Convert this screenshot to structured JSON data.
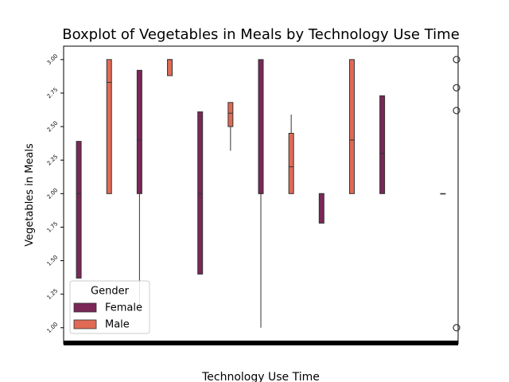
{
  "chart_data": {
    "type": "boxplot",
    "title": "Boxplot of Vegetables in Meals by Technology Use Time",
    "x_label": "Technology Use Time",
    "y_label": "Vegetables in Meals",
    "categories": [
      null,
      null,
      null,
      null,
      null,
      null,
      null,
      null,
      null,
      null,
      null,
      null,
      null
    ],
    "ylim": [
      0.88,
      3.1
    ],
    "yticks": [
      {
        "value": 1,
        "label": "1.00"
      },
      {
        "value": 1.25,
        "label": "1.25"
      },
      {
        "value": 1.5,
        "label": "1.50"
      },
      {
        "value": 1.75,
        "label": "1.75"
      },
      {
        "value": 2,
        "label": "2.00"
      },
      {
        "value": 2.25,
        "label": "2.25"
      },
      {
        "value": 2.5,
        "label": "2.50"
      },
      {
        "value": 2.75,
        "label": "2.75"
      },
      {
        "value": 3,
        "label": "3.00"
      }
    ],
    "legend_title": "Gender",
    "legend_position": "lower left",
    "series": [
      {
        "name": "Female",
        "color": "#7a2757",
        "boxes": [
          {
            "low": 1.37,
            "q1": 1.37,
            "median": 2.0,
            "q3": 2.39,
            "high": 2.39
          },
          null,
          {
            "low": 1.12,
            "q1": 2.0,
            "median": 2.4,
            "q3": 2.92,
            "high": 2.92
          },
          null,
          {
            "low": 1.4,
            "q1": 1.4,
            "median": 2.0,
            "q3": 2.61,
            "high": 2.61
          },
          null,
          {
            "low": 1.0,
            "q1": 2.0,
            "median": 2.0,
            "q3": 3.0,
            "high": 3.0
          },
          null,
          {
            "low": 1.78,
            "q1": 1.78,
            "median": 2.0,
            "q3": 2.0,
            "high": 2.0
          },
          null,
          {
            "low": 2.0,
            "q1": 2.0,
            "median": 2.3,
            "q3": 2.73,
            "high": 2.73
          },
          null,
          null
        ]
      },
      {
        "name": "Male",
        "color": "#e06a55",
        "boxes": [
          null,
          {
            "low": 2.0,
            "q1": 2.0,
            "median": 2.83,
            "q3": 3.0,
            "high": 3.0
          },
          null,
          {
            "low": 2.88,
            "q1": 2.88,
            "median": 3.0,
            "q3": 3.0,
            "high": 3.0
          },
          null,
          {
            "low": 2.32,
            "q1": 2.5,
            "median": 2.6,
            "q3": 2.68,
            "high": 2.68
          },
          null,
          {
            "low": 2.0,
            "q1": 2.0,
            "median": 2.2,
            "q3": 2.45,
            "high": 2.59
          },
          null,
          {
            "low": 2.0,
            "q1": 2.0,
            "median": 2.4,
            "q3": 3.0,
            "high": 3.0
          },
          null,
          null,
          {
            "low": 2.0,
            "q1": 2.0,
            "median": 2.0,
            "q3": 2.0,
            "high": 2.0,
            "fliers": [
              3.0,
              2.79,
              2.62,
              1.0
            ]
          }
        ]
      }
    ]
  }
}
